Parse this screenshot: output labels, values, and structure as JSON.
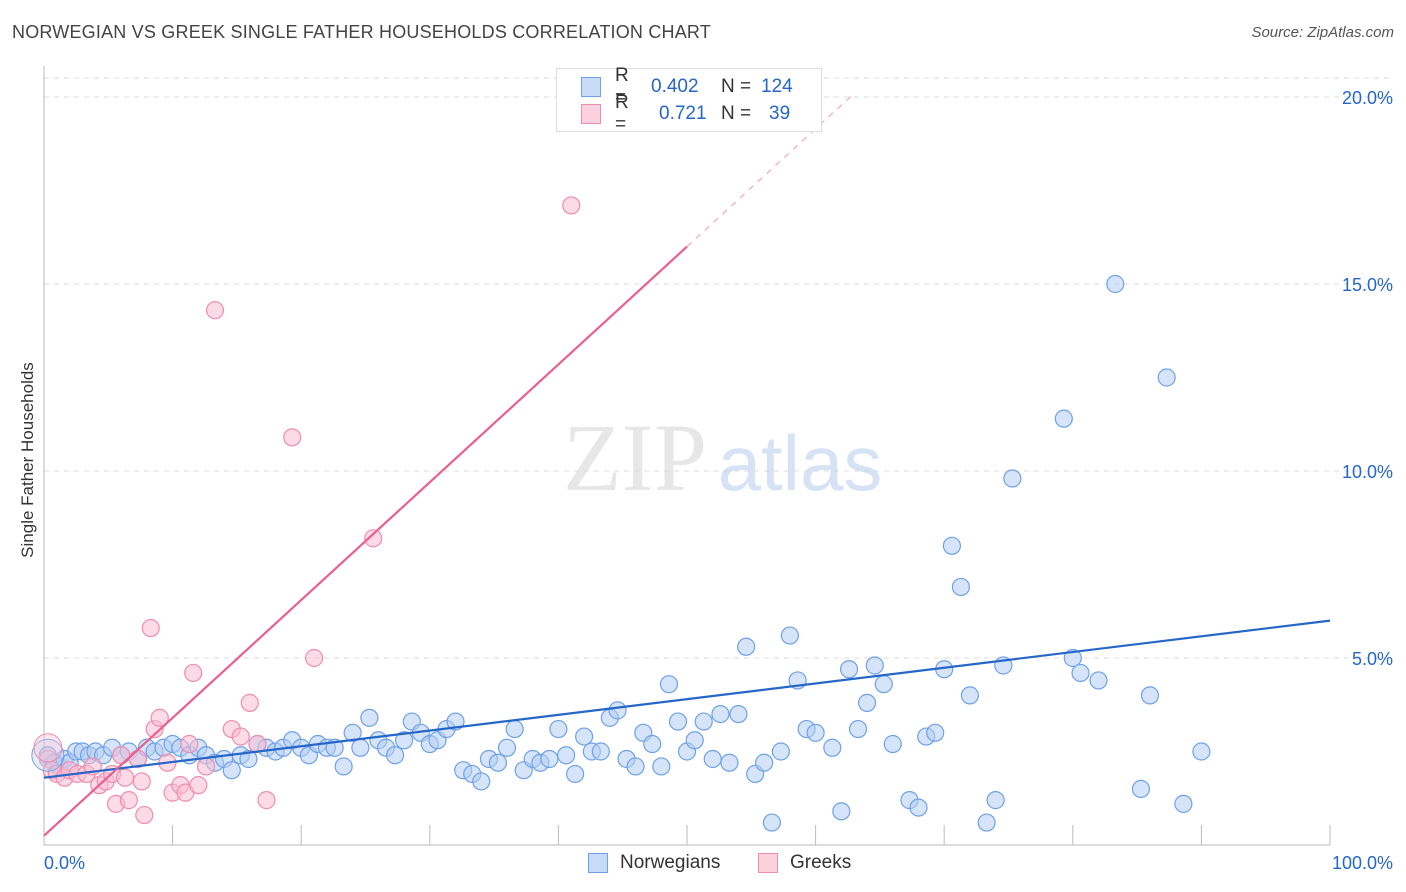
{
  "title": "NORWEGIAN VS GREEK SINGLE FATHER HOUSEHOLDS CORRELATION CHART",
  "source": "Source: ZipAtlas.com",
  "watermark": {
    "zip": "ZIP",
    "atlas": "atlas"
  },
  "correlation_box": {
    "rows": [
      {
        "r_label": "R =",
        "r_value": "0.402",
        "n_label": "N =",
        "n_value": "124",
        "color": "#6fa1e8"
      },
      {
        "r_label": "R =",
        "r_value": "0.721",
        "n_label": "N =",
        "n_value": "39",
        "color": "#f08caf"
      }
    ]
  },
  "legend": [
    {
      "label": "Norwegians",
      "color": "#6fa1e8"
    },
    {
      "label": "Greeks",
      "color": "#f08caf"
    }
  ],
  "chart_data": {
    "type": "scatter",
    "title": "NORWEGIAN VS GREEK SINGLE FATHER HOUSEHOLDS CORRELATION CHART",
    "xlabel": "",
    "ylabel": "Single Father Households",
    "xlim": [
      0,
      100
    ],
    "ylim": [
      0,
      20.5
    ],
    "x_tick_labels": [
      "0.0%",
      "100.0%"
    ],
    "y_ticks": [
      5,
      10,
      15,
      20
    ],
    "y_tick_labels": [
      "5.0%",
      "10.0%",
      "15.0%",
      "20.0%"
    ],
    "series": [
      {
        "name": "Norwegians",
        "color": "#6fa1e8",
        "trend_color": "#2566c9",
        "trend": {
          "x": [
            0,
            100
          ],
          "y": [
            1.8,
            6.0
          ]
        },
        "points": [
          [
            0.3,
            2.4
          ],
          [
            0.8,
            2.2
          ],
          [
            1.2,
            2.1
          ],
          [
            1.6,
            2.3
          ],
          [
            2.0,
            2.2
          ],
          [
            2.5,
            2.5
          ],
          [
            3.0,
            2.5
          ],
          [
            3.5,
            2.4
          ],
          [
            4.0,
            2.5
          ],
          [
            4.6,
            2.4
          ],
          [
            5.3,
            2.6
          ],
          [
            6.0,
            2.4
          ],
          [
            6.6,
            2.5
          ],
          [
            7.3,
            2.3
          ],
          [
            8.0,
            2.6
          ],
          [
            8.6,
            2.5
          ],
          [
            9.3,
            2.6
          ],
          [
            10.0,
            2.7
          ],
          [
            10.6,
            2.6
          ],
          [
            11.3,
            2.4
          ],
          [
            12.0,
            2.6
          ],
          [
            12.6,
            2.4
          ],
          [
            13.3,
            2.2
          ],
          [
            14.0,
            2.3
          ],
          [
            14.6,
            2.0
          ],
          [
            15.3,
            2.4
          ],
          [
            15.9,
            2.3
          ],
          [
            16.6,
            2.7
          ],
          [
            17.3,
            2.6
          ],
          [
            18.0,
            2.5
          ],
          [
            18.6,
            2.6
          ],
          [
            19.3,
            2.8
          ],
          [
            20.0,
            2.6
          ],
          [
            20.6,
            2.4
          ],
          [
            21.3,
            2.7
          ],
          [
            22.0,
            2.6
          ],
          [
            22.6,
            2.6
          ],
          [
            23.3,
            2.1
          ],
          [
            24.0,
            3.0
          ],
          [
            24.6,
            2.6
          ],
          [
            25.3,
            3.4
          ],
          [
            26.0,
            2.8
          ],
          [
            26.6,
            2.6
          ],
          [
            27.3,
            2.4
          ],
          [
            28.0,
            2.8
          ],
          [
            28.6,
            3.3
          ],
          [
            29.3,
            3.0
          ],
          [
            30.0,
            2.7
          ],
          [
            30.6,
            2.8
          ],
          [
            31.3,
            3.1
          ],
          [
            32.0,
            3.3
          ],
          [
            32.6,
            2.0
          ],
          [
            33.3,
            1.9
          ],
          [
            34.0,
            1.7
          ],
          [
            34.6,
            2.3
          ],
          [
            35.3,
            2.2
          ],
          [
            36.0,
            2.6
          ],
          [
            36.6,
            3.1
          ],
          [
            37.3,
            2.0
          ],
          [
            38.0,
            2.3
          ],
          [
            38.6,
            2.2
          ],
          [
            39.3,
            2.3
          ],
          [
            40.0,
            3.1
          ],
          [
            40.6,
            2.4
          ],
          [
            41.3,
            1.9
          ],
          [
            42.0,
            2.9
          ],
          [
            42.6,
            2.5
          ],
          [
            43.3,
            2.5
          ],
          [
            44.0,
            3.4
          ],
          [
            44.6,
            3.6
          ],
          [
            45.3,
            2.3
          ],
          [
            46.0,
            2.1
          ],
          [
            46.6,
            3.0
          ],
          [
            47.3,
            2.7
          ],
          [
            48.0,
            2.1
          ],
          [
            48.6,
            4.3
          ],
          [
            49.3,
            3.3
          ],
          [
            50.0,
            2.5
          ],
          [
            50.6,
            2.8
          ],
          [
            51.3,
            3.3
          ],
          [
            52.0,
            2.3
          ],
          [
            52.6,
            3.5
          ],
          [
            53.3,
            2.2
          ],
          [
            54.0,
            3.5
          ],
          [
            54.6,
            5.3
          ],
          [
            55.3,
            1.9
          ],
          [
            56.0,
            2.2
          ],
          [
            56.6,
            0.6
          ],
          [
            57.3,
            2.5
          ],
          [
            58.0,
            5.6
          ],
          [
            58.6,
            4.4
          ],
          [
            59.3,
            3.1
          ],
          [
            60.0,
            3.0
          ],
          [
            61.3,
            2.6
          ],
          [
            62.0,
            0.9
          ],
          [
            62.6,
            4.7
          ],
          [
            63.3,
            3.1
          ],
          [
            64.0,
            3.8
          ],
          [
            64.6,
            4.8
          ],
          [
            65.3,
            4.3
          ],
          [
            66.0,
            2.7
          ],
          [
            67.3,
            1.2
          ],
          [
            68.0,
            1.0
          ],
          [
            68.6,
            2.9
          ],
          [
            69.3,
            3.0
          ],
          [
            70.0,
            4.7
          ],
          [
            70.6,
            8.0
          ],
          [
            71.3,
            6.9
          ],
          [
            72.0,
            4.0
          ],
          [
            73.3,
            0.6
          ],
          [
            74.0,
            1.2
          ],
          [
            74.6,
            4.8
          ],
          [
            75.3,
            9.8
          ],
          [
            79.3,
            11.4
          ],
          [
            80.0,
            5.0
          ],
          [
            80.6,
            4.6
          ],
          [
            82.0,
            4.4
          ],
          [
            83.3,
            15.0
          ],
          [
            85.3,
            1.5
          ],
          [
            86.0,
            4.0
          ],
          [
            87.3,
            12.5
          ],
          [
            88.6,
            1.1
          ],
          [
            90.0,
            2.5
          ]
        ]
      },
      {
        "name": "Greeks",
        "color": "#f08caf",
        "trend_color": "#e8608f",
        "trend": {
          "x": [
            0,
            50
          ],
          "y": [
            0.25,
            16.0
          ]
        },
        "points": [
          [
            0.3,
            2.3
          ],
          [
            0.6,
            2.0
          ],
          [
            1.0,
            1.9
          ],
          [
            1.6,
            1.8
          ],
          [
            2.0,
            2.0
          ],
          [
            2.6,
            1.9
          ],
          [
            3.3,
            1.9
          ],
          [
            3.8,
            2.1
          ],
          [
            4.3,
            1.6
          ],
          [
            4.8,
            1.7
          ],
          [
            5.3,
            1.9
          ],
          [
            5.6,
            1.1
          ],
          [
            6.0,
            2.4
          ],
          [
            6.3,
            1.8
          ],
          [
            6.6,
            1.2
          ],
          [
            7.3,
            2.3
          ],
          [
            7.6,
            1.7
          ],
          [
            7.8,
            0.8
          ],
          [
            8.3,
            5.8
          ],
          [
            8.6,
            3.1
          ],
          [
            9.0,
            3.4
          ],
          [
            9.6,
            2.2
          ],
          [
            10.0,
            1.4
          ],
          [
            10.6,
            1.6
          ],
          [
            11.0,
            1.4
          ],
          [
            11.3,
            2.7
          ],
          [
            11.6,
            4.6
          ],
          [
            12.0,
            1.6
          ],
          [
            12.6,
            2.1
          ],
          [
            13.3,
            14.3
          ],
          [
            14.6,
            3.1
          ],
          [
            15.3,
            2.9
          ],
          [
            16.0,
            3.8
          ],
          [
            16.6,
            2.7
          ],
          [
            17.3,
            1.2
          ],
          [
            19.3,
            10.9
          ],
          [
            21.0,
            5.0
          ],
          [
            25.6,
            8.2
          ],
          [
            41.0,
            17.1
          ]
        ]
      }
    ]
  }
}
